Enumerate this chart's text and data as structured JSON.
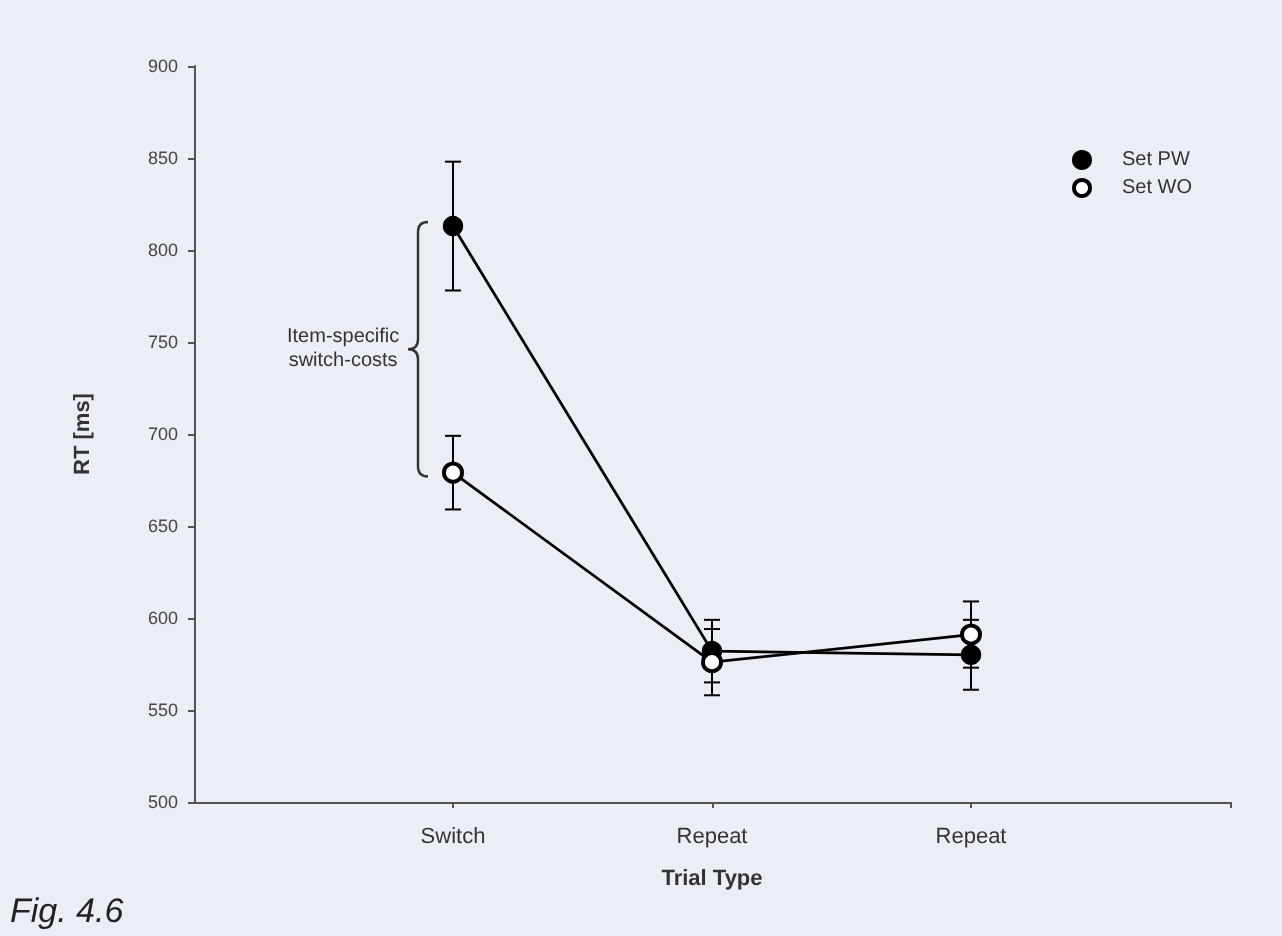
{
  "chart_data": {
    "type": "line",
    "xlabel": "Trial Type",
    "ylabel": "RT [ms]",
    "categories": [
      "Switch",
      "Repeat",
      "Repeat"
    ],
    "series": [
      {
        "name": "Set PW",
        "color": "#000000",
        "values": [
          813,
          582,
          580
        ],
        "errors": [
          35,
          17,
          19
        ]
      },
      {
        "name": "Set WO",
        "color": "#000000",
        "values": [
          679,
          576,
          591
        ],
        "errors": [
          20,
          18,
          18
        ]
      }
    ],
    "ylim": [
      500,
      900
    ],
    "yticks": [
      500,
      550,
      600,
      650,
      700,
      750,
      800,
      850,
      900
    ],
    "annotations": [
      "Item-specific\nswitch-costs",
      "Fig. 4.6"
    ],
    "legend": "top right",
    "marker": "circle",
    "line_style": "solid",
    "grid": false
  }
}
